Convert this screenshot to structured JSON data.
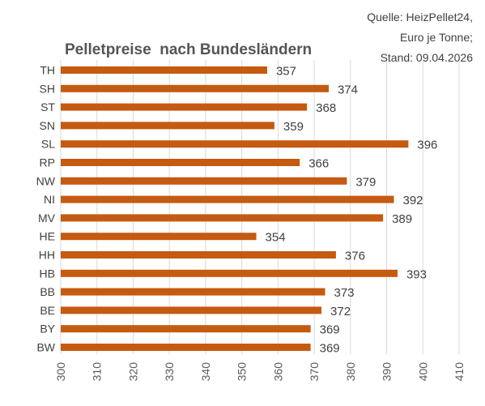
{
  "source_note": {
    "line1": "Quelle: HeizPellet24,",
    "line2": "Euro je Tonne;",
    "line3": "Stand: 09.04.2026"
  },
  "chart_data": {
    "type": "bar",
    "orientation": "horizontal",
    "title": "Pelletpreise  nach Bundesländern",
    "xlabel": "",
    "ylabel": "",
    "categories": [
      "TH",
      "SH",
      "ST",
      "SN",
      "SL",
      "RP",
      "NW",
      "NI",
      "MV",
      "HE",
      "HH",
      "HB",
      "BB",
      "BE",
      "BY",
      "BW"
    ],
    "values": [
      357,
      374,
      368,
      359,
      396,
      366,
      379,
      392,
      389,
      354,
      376,
      393,
      373,
      372,
      369,
      369
    ],
    "xlim": [
      300,
      410
    ],
    "xticks": [
      "300",
      "310",
      "320",
      "330",
      "340",
      "350",
      "360",
      "370",
      "380",
      "390",
      "400",
      "410"
    ],
    "grid": true,
    "data_labels": true,
    "bar_color": "#c55a11"
  }
}
